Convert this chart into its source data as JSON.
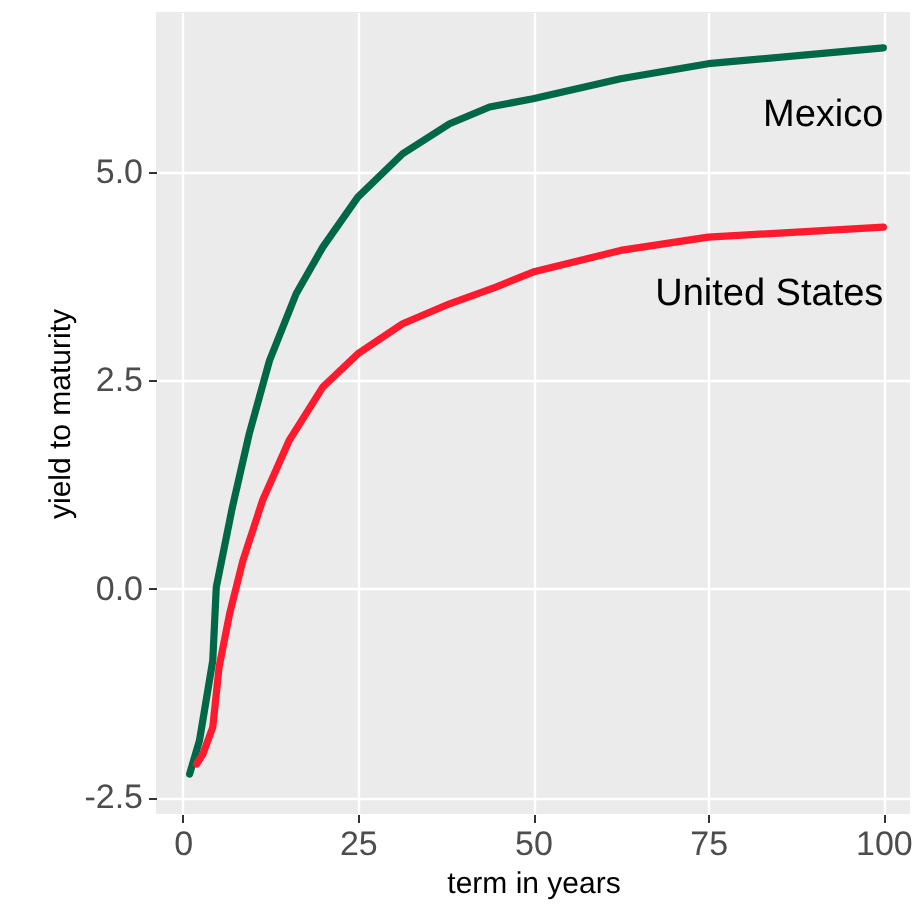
{
  "chart_data": {
    "type": "line",
    "xlabel": "term in years",
    "ylabel": "yield to maturity",
    "xlim": [
      -3.8,
      103.8
    ],
    "ylim": [
      -2.7,
      6.92
    ],
    "xticks": [
      0,
      25,
      50,
      75,
      100
    ],
    "yticks": [
      {
        "value": -2.5,
        "label": "-2.5"
      },
      {
        "value": 0,
        "label": "0.0"
      },
      {
        "value": 2.5,
        "label": "2.5"
      },
      {
        "value": 5,
        "label": "5.0"
      }
    ],
    "grid": true,
    "legend": false,
    "marker": "none",
    "line_style": "solid",
    "series": [
      {
        "name": "Mexico",
        "color": "#006847",
        "x": [
          1,
          2.4,
          4.3,
          4.8,
          7.1,
          9.5,
          12.4,
          16.2,
          20,
          25,
          31.4,
          38.1,
          43.8,
          50,
          62.5,
          75,
          100
        ],
        "values": [
          -2.22,
          -1.82,
          -0.86,
          0.02,
          0.98,
          1.86,
          2.74,
          3.54,
          4.1,
          4.7,
          5.22,
          5.58,
          5.78,
          5.88,
          6.12,
          6.3,
          6.49
        ]
      },
      {
        "name": "United States",
        "color": "#ff1a2e",
        "x": [
          2,
          2.9,
          4.3,
          5.2,
          6.7,
          8.6,
          11.4,
          15.2,
          20,
          25,
          31.4,
          38.1,
          44.7,
          50,
          62.5,
          75,
          100
        ],
        "values": [
          -2.1,
          -1.98,
          -1.66,
          -0.94,
          -0.3,
          0.34,
          1.06,
          1.78,
          2.42,
          2.82,
          3.18,
          3.42,
          3.62,
          3.8,
          4.06,
          4.22,
          4.34
        ]
      }
    ]
  }
}
